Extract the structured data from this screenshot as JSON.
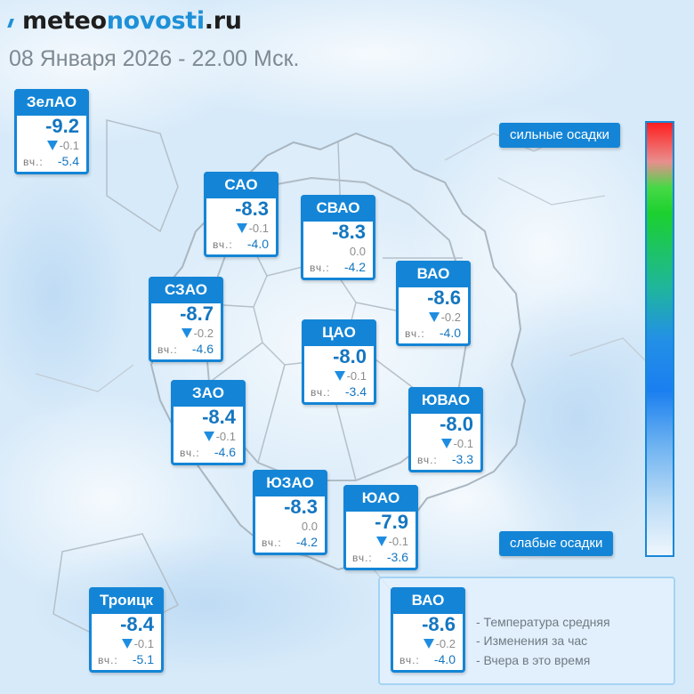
{
  "header": {
    "brand_part1": "meteo",
    "brand_part2": "novosti",
    "brand_part3": ".ru",
    "datetime": "08 Января 2026 - 22.00 Мск."
  },
  "districts": [
    {
      "name": "ЗелАО",
      "temp": "-9.2",
      "change": "-0.1",
      "change_dir": "down",
      "yesterday_label": "вч.:",
      "yesterday": "-5.4"
    },
    {
      "name": "САО",
      "temp": "-8.3",
      "change": "-0.1",
      "change_dir": "down",
      "yesterday_label": "вч.:",
      "yesterday": "-4.0"
    },
    {
      "name": "СВАО",
      "temp": "-8.3",
      "change": "0.0",
      "change_dir": "none",
      "yesterday_label": "вч.:",
      "yesterday": "-4.2"
    },
    {
      "name": "ВАО",
      "temp": "-8.6",
      "change": "-0.2",
      "change_dir": "down",
      "yesterday_label": "вч.:",
      "yesterday": "-4.0"
    },
    {
      "name": "СЗАО",
      "temp": "-8.7",
      "change": "-0.2",
      "change_dir": "down",
      "yesterday_label": "вч.:",
      "yesterday": "-4.6"
    },
    {
      "name": "ЦАО",
      "temp": "-8.0",
      "change": "-0.1",
      "change_dir": "down",
      "yesterday_label": "вч.:",
      "yesterday": "-3.4"
    },
    {
      "name": "ЗАО",
      "temp": "-8.4",
      "change": "-0.1",
      "change_dir": "down",
      "yesterday_label": "вч.:",
      "yesterday": "-4.6"
    },
    {
      "name": "ЮВАО",
      "temp": "-8.0",
      "change": "-0.1",
      "change_dir": "down",
      "yesterday_label": "вч.:",
      "yesterday": "-3.3"
    },
    {
      "name": "ЮЗАО",
      "temp": "-8.3",
      "change": "0.0",
      "change_dir": "none",
      "yesterday_label": "вч.:",
      "yesterday": "-4.2"
    },
    {
      "name": "ЮАО",
      "temp": "-7.9",
      "change": "-0.1",
      "change_dir": "down",
      "yesterday_label": "вч.:",
      "yesterday": "-3.6"
    },
    {
      "name": "Троицк",
      "temp": "-8.4",
      "change": "-0.1",
      "change_dir": "down",
      "yesterday_label": "вч.:",
      "yesterday": "-5.1"
    }
  ],
  "scale": {
    "top_label": "сильные осадки",
    "bottom_label": "слабые осадки",
    "colors": [
      "#ff1f1f",
      "#1bd02f",
      "#2390e6",
      "#eef6fd"
    ]
  },
  "legend": {
    "sample": {
      "name": "ВАО",
      "temp": "-8.6",
      "change": "-0.2",
      "change_dir": "down",
      "yesterday_label": "вч.:",
      "yesterday": "-4.0"
    },
    "items": [
      "- Температура средняя",
      "- Изменения за час",
      "- Вчера в это время"
    ]
  }
}
